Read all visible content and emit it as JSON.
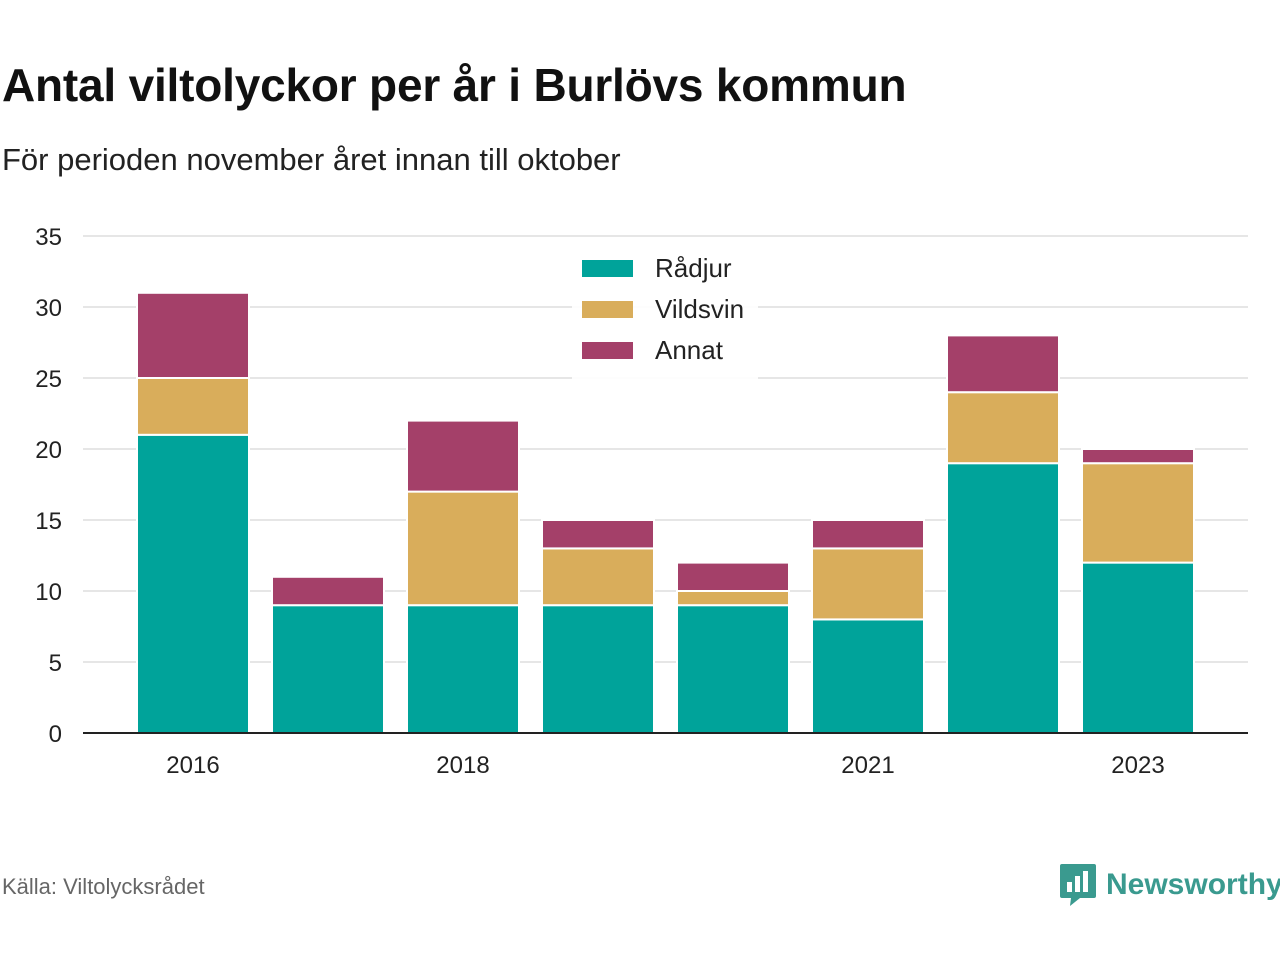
{
  "title": "Antal viltolyckor per år i Burlövs kommun",
  "subtitle": "För perioden november året innan till oktober",
  "source": "Källa: Viltolycksrådet",
  "brand": {
    "name": "Newsworthy",
    "icon": "newsworthy-logo-icon",
    "color": "#3a9a8f"
  },
  "chart_data": {
    "type": "bar",
    "stacked": true,
    "categories": [
      "2016",
      "2017",
      "2018",
      "2019",
      "2020",
      "2021",
      "2022",
      "2023"
    ],
    "x_tick_labels": [
      "2016",
      "",
      "2018",
      "",
      "",
      "2021",
      "",
      "2023"
    ],
    "series": [
      {
        "name": "Rådjur",
        "color": "#00a39a",
        "values": [
          21,
          9,
          9,
          9,
          9,
          8,
          19,
          12
        ]
      },
      {
        "name": "Vildsvin",
        "color": "#d9ad5b",
        "values": [
          4,
          0,
          8,
          4,
          1,
          5,
          5,
          7
        ]
      },
      {
        "name": "Annat",
        "color": "#a44069",
        "values": [
          6,
          2,
          5,
          2,
          2,
          2,
          4,
          1
        ]
      }
    ],
    "ylim": [
      0,
      35
    ],
    "yticks": [
      0,
      5,
      10,
      15,
      20,
      25,
      30,
      35
    ],
    "grid": true,
    "legend": "top-center"
  }
}
